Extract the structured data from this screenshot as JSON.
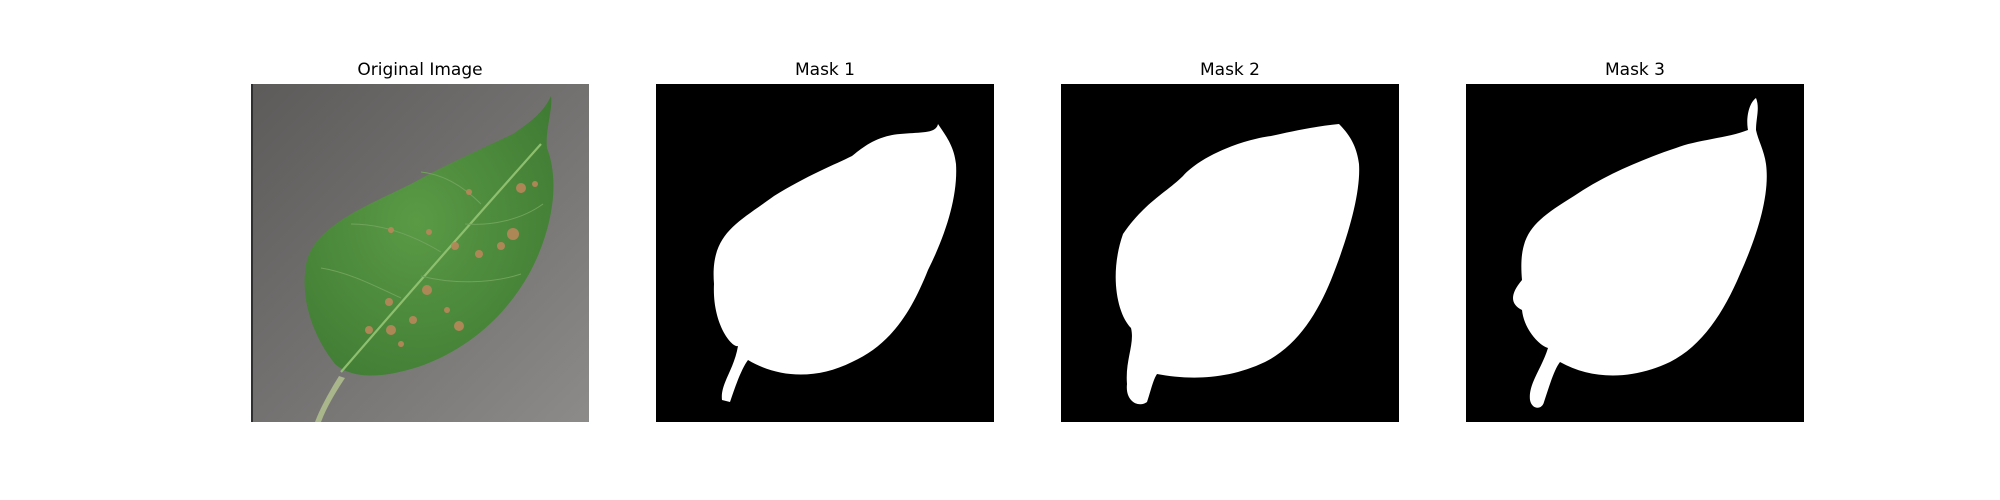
{
  "figure": {
    "panels": [
      {
        "title": "Original Image"
      },
      {
        "title": "Mask 1"
      },
      {
        "title": "Mask 2"
      },
      {
        "title": "Mask 3"
      }
    ]
  },
  "colors": {
    "background": "#ffffff",
    "mask_background": "#000000",
    "mask_foreground": "#ffffff",
    "leaf": "#4f8f3f",
    "surface": "#6f6d6c",
    "lesion": "#b9875a"
  }
}
